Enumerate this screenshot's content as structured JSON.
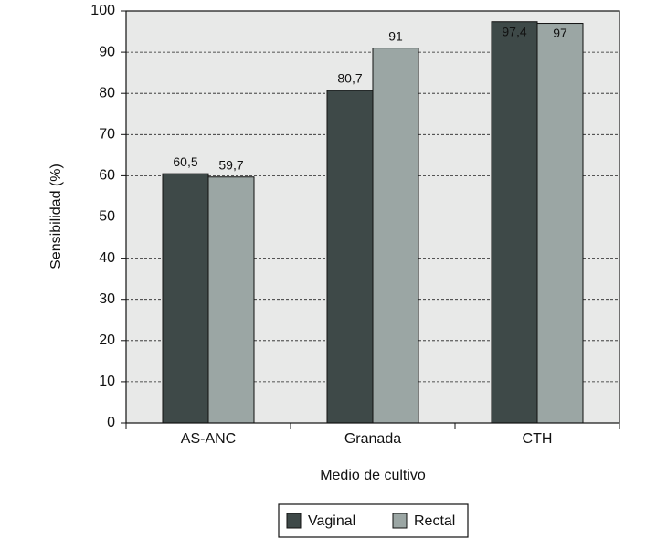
{
  "chart_data": {
    "type": "bar",
    "x_label": "Medio de cultivo",
    "y_label": "Sensibilidad (%)",
    "categories": [
      "AS-ANC",
      "Granada",
      "CTH"
    ],
    "series": [
      {
        "name": "Vaginal",
        "color": "#3e4948",
        "values": [
          60.5,
          80.7,
          97.4
        ],
        "value_labels": [
          "60,5",
          "80,7",
          "97,4"
        ]
      },
      {
        "name": "Rectal",
        "color": "#9ba6a4",
        "values": [
          59.7,
          91,
          97
        ],
        "value_labels": [
          "59,7",
          "91",
          "97"
        ]
      }
    ],
    "ylim": [
      0,
      100
    ],
    "yticks": [
      0,
      10,
      20,
      30,
      40,
      50,
      60,
      70,
      80,
      90,
      100
    ],
    "grid": true,
    "legend": "bottom"
  }
}
